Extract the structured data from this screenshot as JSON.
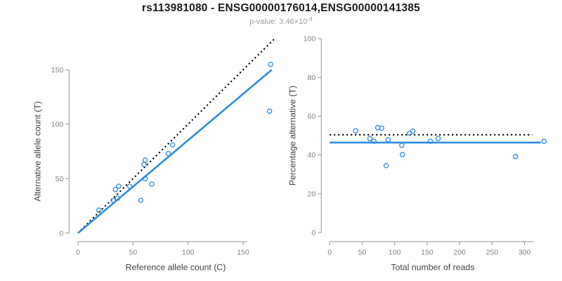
{
  "colors": {
    "accent_blue": "#2E8CE0",
    "line_black": "#000000",
    "axis_gray": "#999999",
    "tick_text": "#808080",
    "label_text": "#404040",
    "title_text": "#1b1b1b",
    "subtitle_text": "#9e9e9e"
  },
  "chart_data": {
    "figure_title": "rs113981080 - ENSG00000176014,ENSG00000141385",
    "pvalue_label": "p-value: 3.46×10",
    "pvalue_exponent": "-4",
    "plots": [
      {
        "type": "scatter",
        "name": "allele-counts-plot",
        "xlabel": "Reference allele count (C)",
        "ylabel": "Alternative allele count (T)",
        "xlim": [
          0,
          178
        ],
        "ylim": [
          0,
          178
        ],
        "xticks": [
          0,
          50,
          100,
          150
        ],
        "yticks": [
          0,
          50,
          100,
          150
        ],
        "grid": false,
        "legend": false,
        "points": [
          [
            19,
            21
          ],
          [
            32,
            30
          ],
          [
            36,
            32
          ],
          [
            34,
            40
          ],
          [
            37,
            43
          ],
          [
            47,
            43
          ],
          [
            57,
            30
          ],
          [
            61,
            50
          ],
          [
            67,
            45
          ],
          [
            60,
            63
          ],
          [
            61,
            67
          ],
          [
            82,
            73
          ],
          [
            86,
            81
          ],
          [
            174,
            112
          ],
          [
            175,
            155
          ]
        ],
        "lines": [
          {
            "name": "identity-line",
            "style": "dotted",
            "color": "#000000",
            "from": [
              0,
              0
            ],
            "to": [
              178,
              178
            ]
          },
          {
            "name": "fit-line",
            "style": "solid",
            "color": "#2E8CE0",
            "from": [
              0,
              0
            ],
            "to": [
              176,
              150
            ]
          }
        ]
      },
      {
        "type": "scatter",
        "name": "percentage-alternative-plot",
        "xlabel": "Total number of reads",
        "ylabel": "Percentage alternative (T)",
        "xlim": [
          0,
          333
        ],
        "ylim": [
          0,
          100
        ],
        "xticks": [
          0,
          50,
          100,
          150,
          200,
          250,
          300
        ],
        "yticks": [
          0,
          20,
          40,
          60,
          80,
          100
        ],
        "grid": false,
        "legend": false,
        "points": [
          [
            40,
            52.5
          ],
          [
            62,
            48.4
          ],
          [
            68,
            47.1
          ],
          [
            74,
            54.1
          ],
          [
            80,
            53.8
          ],
          [
            90,
            47.8
          ],
          [
            87,
            34.5
          ],
          [
            111,
            45.0
          ],
          [
            112,
            40.2
          ],
          [
            123,
            51.2
          ],
          [
            128,
            52.3
          ],
          [
            155,
            47.1
          ],
          [
            167,
            48.5
          ],
          [
            286,
            39.2
          ],
          [
            330,
            47.0
          ]
        ],
        "lines": [
          {
            "name": "expected-50pct-line",
            "style": "dotted",
            "color": "#000000",
            "from": [
              0,
              50.4
            ],
            "to": [
              312,
              50.4
            ]
          },
          {
            "name": "mean-percentage-line",
            "style": "solid",
            "color": "#2E8CE0",
            "from": [
              0,
              46.4
            ],
            "to": [
              325,
              46.4
            ]
          }
        ]
      }
    ]
  }
}
